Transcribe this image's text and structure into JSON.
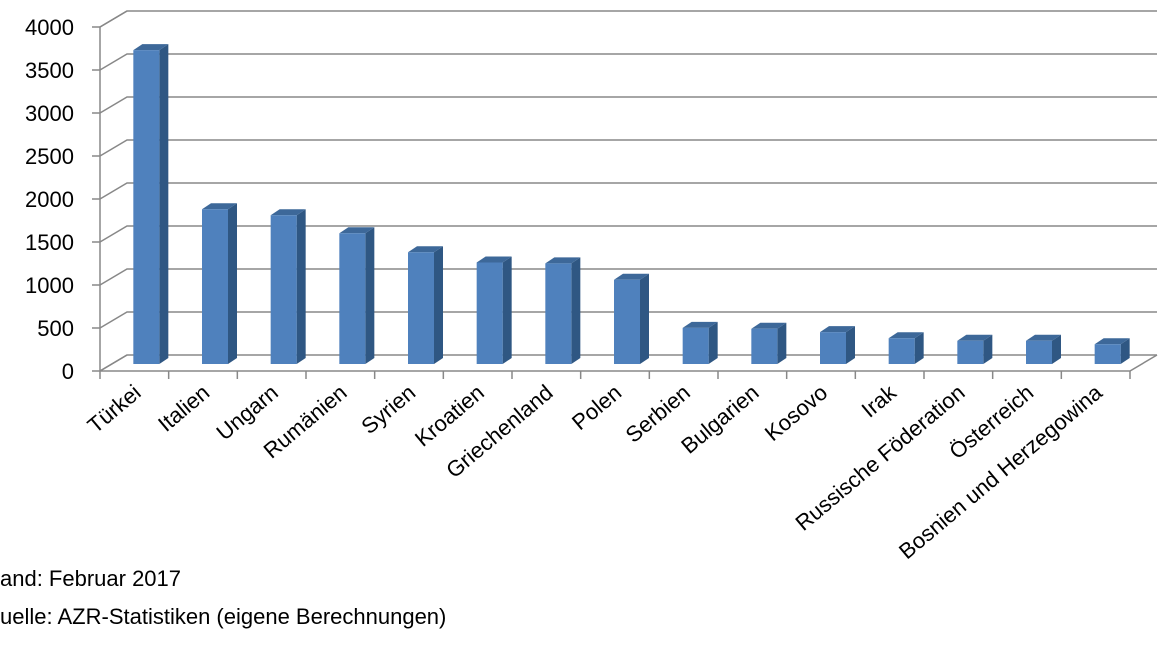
{
  "chart_data": {
    "type": "bar3d",
    "categories": [
      "Türkei",
      "Italien",
      "Ungarn",
      "Rumänien",
      "Syrien",
      "Kroatien",
      "Griechenland",
      "Polen",
      "Serbien",
      "Bulgarien",
      "Kosovo",
      "Irak",
      "Russische Föderation",
      "Österreich",
      "Bosnien und Herzegowina"
    ],
    "values": [
      3650,
      1800,
      1730,
      1520,
      1300,
      1180,
      1170,
      980,
      420,
      410,
      370,
      300,
      270,
      270,
      230
    ],
    "color": "#4f81bd",
    "ylim": [
      0,
      4000
    ],
    "yticks": [
      0,
      500,
      1000,
      1500,
      2000,
      2500,
      3000,
      3500,
      4000
    ],
    "grid": true,
    "notes": [
      "and: Februar 2017",
      "uelle: AZR-Statistiken (eigene Berechnungen)"
    ]
  }
}
